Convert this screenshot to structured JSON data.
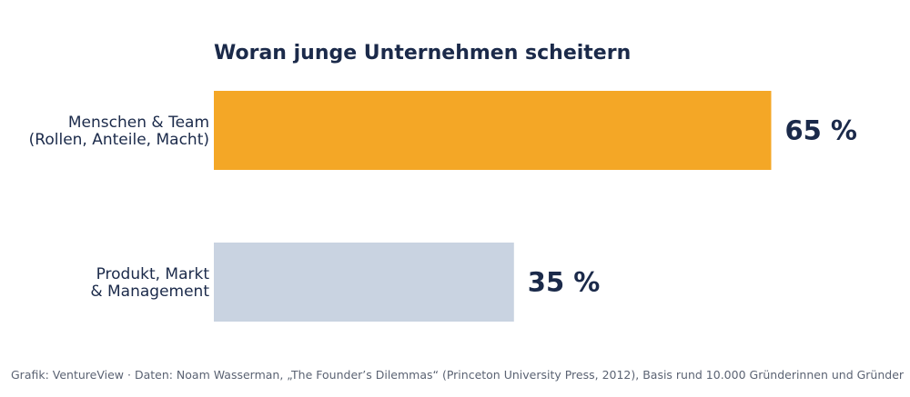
{
  "chart_data": {
    "type": "bar",
    "orientation": "horizontal",
    "title": "Woran junge Unternehmen scheitern",
    "categories": [
      [
        "Menschen & Team",
        "(Rollen, Anteile, Macht)"
      ],
      [
        "Produkt, Markt",
        "& Management"
      ]
    ],
    "values": [
      65,
      35
    ],
    "value_labels": [
      "65 %",
      "35 %"
    ],
    "colors": [
      "#f4a726",
      "#c9d3e1"
    ],
    "xlim": [
      0,
      100
    ],
    "grid": false,
    "xlabel": "",
    "ylabel": ""
  },
  "footer": {
    "text": "Grafik: VentureView  ·  Daten: Noam Wasserman, „The Founder’s Dilemmas“ (Princeton University Press, 2012), Basis rund 10.000 Gründerinnen und Gründer"
  }
}
